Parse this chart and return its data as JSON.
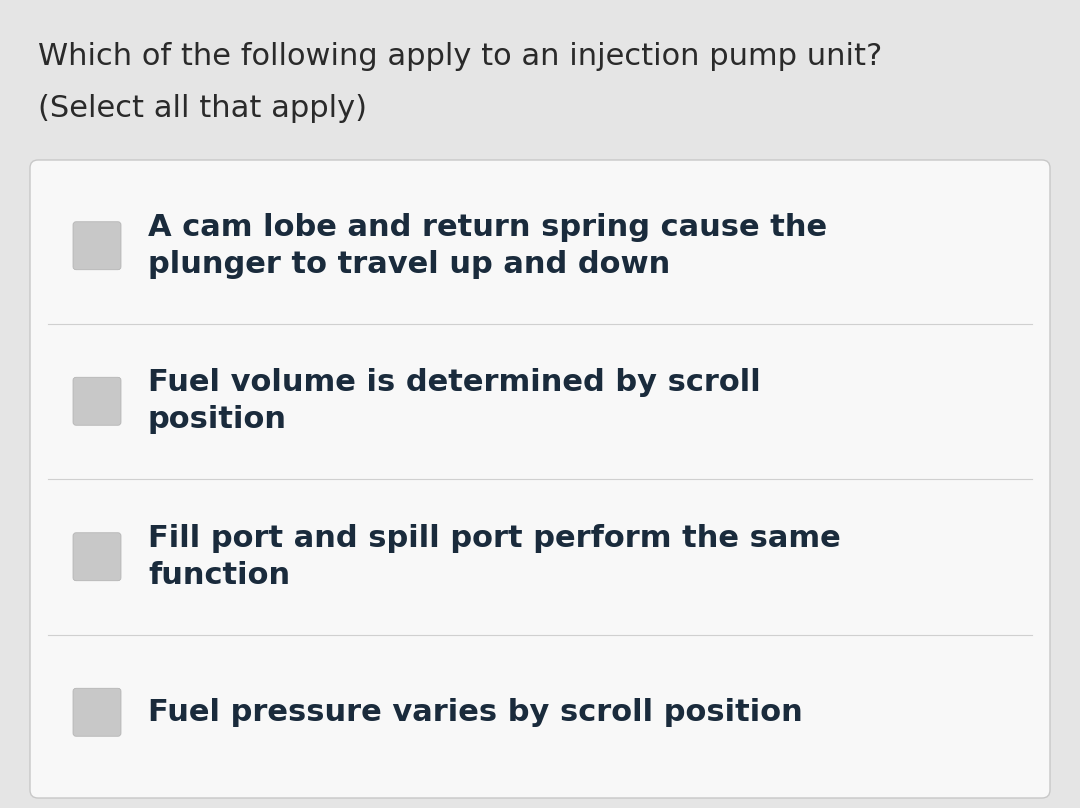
{
  "background_color": "#e5e5e5",
  "card_background": "#f8f8f8",
  "card_border_color": "#c8c8c8",
  "divider_color": "#d0d0d0",
  "question_text_line1": "Which of the following apply to an injection pump unit?",
  "question_text_line2": "(Select all that apply)",
  "question_font_size": 22,
  "question_text_color": "#2a2a2a",
  "options": [
    "A cam lobe and return spring cause the\nplunger to travel up and down",
    "Fuel volume is determined by scroll\nposition",
    "Fill port and spill port perform the same\nfunction",
    "Fuel pressure varies by scroll position"
  ],
  "option_font_size": 22,
  "option_text_color": "#1a2b3c",
  "checkbox_color": "#c8c8c8",
  "checkbox_edge_color": "#b0b0b0"
}
